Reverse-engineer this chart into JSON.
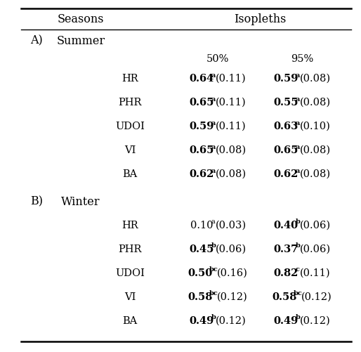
{
  "title_col1": "Seasons",
  "title_col2": "Isopleths",
  "section_A_label": "A)",
  "section_A_season": "Summer",
  "section_B_label": "B)",
  "section_B_season": "Winter",
  "isopleth_50": "50%",
  "isopleth_95": "95%",
  "methods": [
    "HR",
    "PHR",
    "UDOI",
    "VI",
    "BA"
  ],
  "summer_50": [
    {
      "val": "0.64",
      "sup": "a",
      "paren": "(0.11)",
      "is_bold": true
    },
    {
      "val": "0.65",
      "sup": "a",
      "paren": "(0.11)",
      "is_bold": true
    },
    {
      "val": "0.59",
      "sup": "a",
      "paren": "(0.11)",
      "is_bold": true
    },
    {
      "val": "0.65",
      "sup": "a",
      "paren": "(0.08)",
      "is_bold": true
    },
    {
      "val": "0.62",
      "sup": "a",
      "paren": "(0.08)",
      "is_bold": true
    }
  ],
  "summer_95": [
    {
      "val": "0.59",
      "sup": "a",
      "paren": "(0.08)",
      "is_bold": true
    },
    {
      "val": "0.55",
      "sup": "a",
      "paren": "(0.08)",
      "is_bold": true
    },
    {
      "val": "0.63",
      "sup": "a",
      "paren": "(0.10)",
      "is_bold": true
    },
    {
      "val": "0.65",
      "sup": "a",
      "paren": "(0.08)",
      "is_bold": true
    },
    {
      "val": "0.62",
      "sup": "a",
      "paren": "(0.08)",
      "is_bold": true
    }
  ],
  "winter_50": [
    {
      "val": "0.10",
      "sup": "a",
      "paren": "(0.03)",
      "is_bold": false
    },
    {
      "val": "0.45",
      "sup": "b",
      "paren": "(0.06)",
      "is_bold": true
    },
    {
      "val": "0.50",
      "sup": "bc",
      "paren": "(0.16)",
      "is_bold": true
    },
    {
      "val": "0.58",
      "sup": "bc",
      "paren": "(0.12)",
      "is_bold": true
    },
    {
      "val": "0.49",
      "sup": "b",
      "paren": "(0.12)",
      "is_bold": true
    }
  ],
  "winter_95": [
    {
      "val": "0.40",
      "sup": "b",
      "paren": "(0.06)",
      "is_bold": true
    },
    {
      "val": "0.37",
      "sup": "b",
      "paren": "(0.06)",
      "is_bold": true
    },
    {
      "val": "0.82",
      "sup": "c",
      "paren": "(0.11)",
      "is_bold": true
    },
    {
      "val": "0.58",
      "sup": "bc",
      "paren": "(0.12)",
      "is_bold": true
    },
    {
      "val": "0.49",
      "sup": "b",
      "paren": "(0.12)",
      "is_bold": true
    }
  ],
  "bg_color": "#ffffff",
  "text_color": "#000000",
  "line_color": "#000000",
  "fig_width": 5.14,
  "fig_height": 5.01,
  "dpi": 100
}
